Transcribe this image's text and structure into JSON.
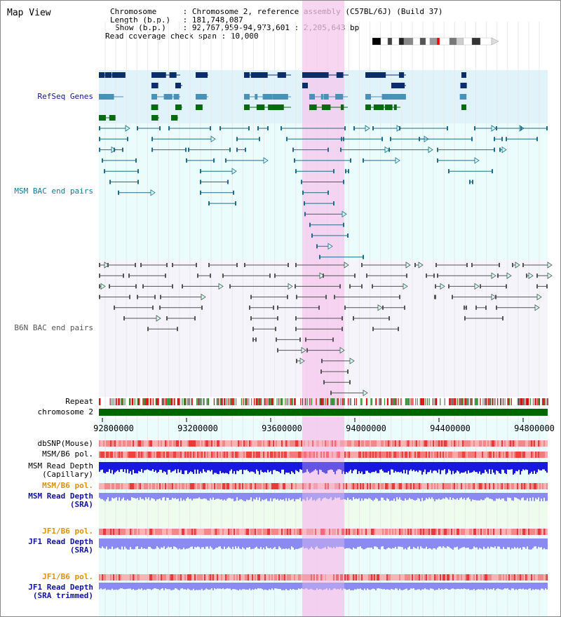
{
  "title": "Map View",
  "info": {
    "chromosome_label": "Chromosome",
    "chromosome_value": "Chromosome 2, reference assembly (C57BL/6J) (Build 37)",
    "length_label": "Length (b.p.)",
    "length_value": "181,748,087",
    "show_label": "Show (b.p.)",
    "show_value": "92,767,959-94,973,601 : 2,205,643 bp",
    "span_label": "Read coverage check span",
    "span_value": "10,000"
  },
  "tracks": {
    "refseq": "RefSeq Genes",
    "msm_bac": "MSM BAC end pairs",
    "b6n_bac": "B6N BAC end pairs",
    "repeat": "Repeat",
    "chromosome": "chromosome 2",
    "dbsnp": "dbSNP(Mouse)",
    "msm_b6_pol": "MSM/B6 pol.",
    "msm_depth_cap_1": "MSM Read Depth",
    "msm_depth_cap_2": "(Capillary)",
    "msm_b6_pol_sra": "MSM/B6 pol.",
    "msm_depth_sra_1": "MSM Read Depth",
    "msm_depth_sra_2": "(SRA)",
    "jf1_pol_1": "JF1/B6 pol.",
    "jf1_depth_1": "JF1 Read Depth",
    "jf1_depth_sra": "(SRA)",
    "jf1_pol_2": "JF1/B6 pol.",
    "jf1_depth_trim_1": "JF1 Read Depth",
    "jf1_depth_trim_2": "(SRA trimmed)"
  },
  "axis": {
    "ticks": [
      "92800000",
      "93200000",
      "93600000",
      "94000000",
      "94400000",
      "94800000"
    ]
  },
  "colors": {
    "refseq_bg": "#e0f3fb",
    "msm_bg": "#eafcfc",
    "b6n_bg": "#f4f4fa",
    "highlight": "#f5c8ee",
    "refseq_dark": "#0b2e6a",
    "refseq_mid": "#4a90b8",
    "refseq_green": "#0a6a14",
    "msm_line": "#206c8c",
    "b6n_line": "#555555",
    "chrom_green": "#006600",
    "label_blue": "#1212a0",
    "label_teal": "#127b9b",
    "label_orange": "#e09010",
    "depth_blue": "#1818e0",
    "depth_light": "#8a8af2"
  }
}
